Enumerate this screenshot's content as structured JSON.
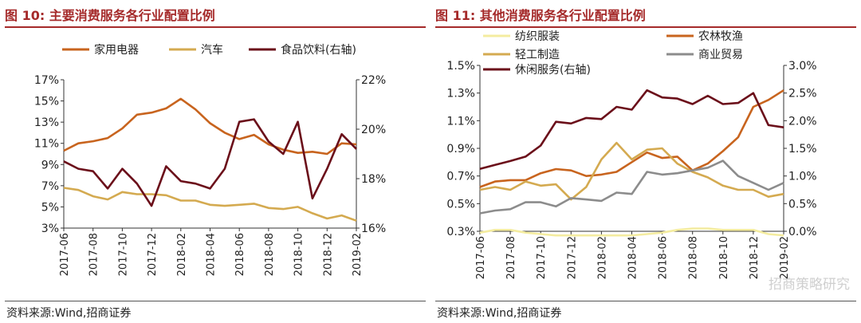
{
  "chart_data": [
    {
      "type": "line",
      "title": "图 10:  主要消费服务各行业配置比例",
      "source": "资料来源:Wind,招商证券",
      "x": [
        "2017-06",
        "2017-07",
        "2017-08",
        "2017-09",
        "2017-10",
        "2017-11",
        "2017-12",
        "2018-01",
        "2018-02",
        "2018-03",
        "2018-04",
        "2018-05",
        "2018-06",
        "2018-07",
        "2018-08",
        "2018-09",
        "2018-10",
        "2018-11",
        "2018-12",
        "2019-01",
        "2019-02"
      ],
      "xticks": [
        "2017-06",
        "2017-08",
        "2017-10",
        "2017-12",
        "2018-02",
        "2018-04",
        "2018-06",
        "2018-08",
        "2018-10",
        "2018-12",
        "2019-02"
      ],
      "yticks_left": [
        "3%",
        "5%",
        "7%",
        "9%",
        "11%",
        "13%",
        "15%",
        "17%"
      ],
      "yticks_right": [
        "16%",
        "18%",
        "20%",
        "22%"
      ],
      "ylim_left": [
        3,
        17
      ],
      "ylim_right": [
        16,
        22
      ],
      "grid": false,
      "legend_position": "top",
      "series": [
        {
          "name": "家用电器",
          "axis": "left",
          "color": "#c8641e",
          "values": [
            10.3,
            11.0,
            11.2,
            11.5,
            12.4,
            13.7,
            13.9,
            14.3,
            15.2,
            14.2,
            12.9,
            12.0,
            11.4,
            11.8,
            10.9,
            10.4,
            10.1,
            10.2,
            10.0,
            11.0,
            10.9
          ]
        },
        {
          "name": "汽车",
          "axis": "left",
          "color": "#d4aa50",
          "values": [
            6.8,
            6.6,
            6.0,
            5.7,
            6.4,
            6.2,
            6.2,
            6.1,
            5.6,
            5.6,
            5.2,
            5.1,
            5.2,
            5.3,
            4.9,
            4.8,
            5.0,
            4.4,
            3.9,
            4.2,
            3.7
          ]
        },
        {
          "name": "食品饮料(右轴)",
          "axis": "right",
          "color": "#6b0f1a",
          "values": [
            18.7,
            18.4,
            18.3,
            17.6,
            18.4,
            17.8,
            16.9,
            18.5,
            17.9,
            17.8,
            17.6,
            18.4,
            20.3,
            20.4,
            19.5,
            19.0,
            20.3,
            17.2,
            18.4,
            19.8,
            19.2
          ]
        }
      ]
    },
    {
      "type": "line",
      "title": "图 11:  其他消费服务各行业配置比例",
      "source": "资料来源:Wind,招商证券",
      "x": [
        "2017-06",
        "2017-07",
        "2017-08",
        "2017-09",
        "2017-10",
        "2017-11",
        "2017-12",
        "2018-01",
        "2018-02",
        "2018-03",
        "2018-04",
        "2018-05",
        "2018-06",
        "2018-07",
        "2018-08",
        "2018-09",
        "2018-10",
        "2018-11",
        "2018-12",
        "2019-01",
        "2019-02"
      ],
      "xticks": [
        "2017-06",
        "2017-08",
        "2017-10",
        "2017-12",
        "2018-02",
        "2018-04",
        "2018-06",
        "2018-08",
        "2018-10",
        "2018-12",
        "2019-02"
      ],
      "yticks_left": [
        "0.3%",
        "0.5%",
        "0.7%",
        "0.9%",
        "1.1%",
        "1.3%",
        "1.5%"
      ],
      "yticks_right": [
        "0.0%",
        "0.5%",
        "1.0%",
        "1.5%",
        "2.0%",
        "2.5%",
        "3.0%"
      ],
      "ylim_left": [
        0.3,
        1.5
      ],
      "ylim_right": [
        0.0,
        3.0
      ],
      "grid": false,
      "legend_position": "top",
      "series": [
        {
          "name": "纺织服装",
          "axis": "left",
          "color": "#f4eca0",
          "values": [
            0.29,
            0.31,
            0.31,
            0.29,
            0.28,
            0.27,
            0.27,
            0.27,
            0.27,
            0.27,
            0.27,
            0.28,
            0.29,
            0.31,
            0.32,
            0.32,
            0.31,
            0.31,
            0.31,
            0.28,
            0.27
          ]
        },
        {
          "name": "农林牧渔",
          "axis": "left",
          "color": "#c8641e",
          "values": [
            0.62,
            0.66,
            0.67,
            0.67,
            0.72,
            0.75,
            0.74,
            0.7,
            0.71,
            0.73,
            0.8,
            0.87,
            0.83,
            0.84,
            0.74,
            0.79,
            0.88,
            0.98,
            1.2,
            1.25,
            1.32
          ]
        },
        {
          "name": "轻工制造",
          "axis": "left",
          "color": "#d4aa50",
          "values": [
            0.6,
            0.62,
            0.6,
            0.66,
            0.63,
            0.64,
            0.53,
            0.62,
            0.82,
            0.94,
            0.82,
            0.89,
            0.9,
            0.79,
            0.73,
            0.69,
            0.63,
            0.6,
            0.6,
            0.55,
            0.57
          ]
        },
        {
          "name": "商业贸易",
          "axis": "left",
          "color": "#8c8c8c",
          "values": [
            0.43,
            0.45,
            0.46,
            0.51,
            0.51,
            0.48,
            0.54,
            0.53,
            0.52,
            0.58,
            0.57,
            0.73,
            0.71,
            0.72,
            0.74,
            0.76,
            0.81,
            0.7,
            0.65,
            0.6,
            0.65
          ]
        },
        {
          "name": "休闲服务(右轴)",
          "axis": "right",
          "color": "#6b0f1a",
          "values": [
            1.13,
            1.2,
            1.27,
            1.35,
            1.55,
            1.98,
            1.95,
            2.05,
            2.03,
            2.25,
            2.2,
            2.55,
            2.42,
            2.4,
            2.3,
            2.45,
            2.3,
            2.32,
            2.5,
            1.92,
            1.88
          ]
        }
      ]
    }
  ],
  "watermark": "招商策略研究"
}
